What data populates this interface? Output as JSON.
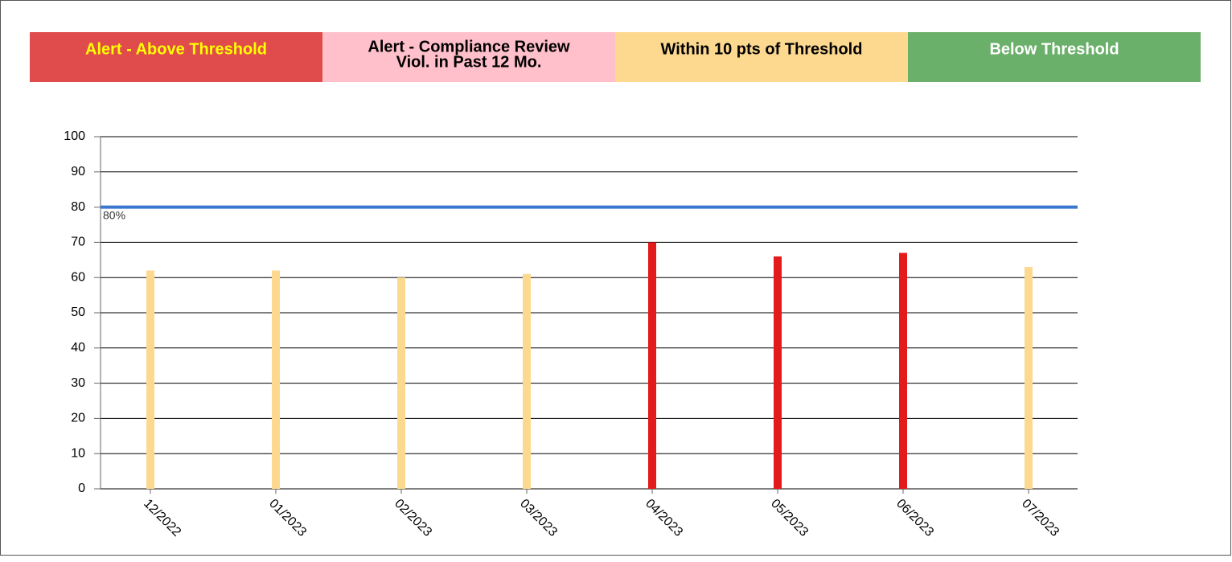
{
  "chart_data": {
    "type": "bar",
    "legend": [
      {
        "label": "Alert - Above Threshold",
        "color": "#e04b4b",
        "text_color": "#ffff00"
      },
      {
        "label": [
          "Alert - Compliance Review",
          "Viol. in Past 12 Mo."
        ],
        "color": "#ffc0cb",
        "text_color": "#000000"
      },
      {
        "label": "Within 10 pts of Threshold",
        "color": "#fdd990",
        "text_color": "#000000"
      },
      {
        "label": "Below Threshold",
        "color": "#6aaf6a",
        "text_color": "#ffffff"
      }
    ],
    "categories": [
      "12/2022",
      "01/2023",
      "02/2023",
      "03/2023",
      "04/2023",
      "05/2023",
      "06/2023",
      "07/2023"
    ],
    "values": [
      62,
      62,
      60,
      61,
      70,
      66,
      67,
      63
    ],
    "colors": [
      "#fdd990",
      "#fdd990",
      "#fdd990",
      "#fdd990",
      "#e31b1b",
      "#e31b1b",
      "#e31b1b",
      "#fdd990"
    ],
    "threshold": {
      "value": 80,
      "label": "80%",
      "color": "#3a78d0"
    },
    "ylim": [
      0,
      100
    ],
    "yticks": [
      0,
      10,
      20,
      30,
      40,
      50,
      60,
      70,
      80,
      90,
      100
    ],
    "grid": true
  }
}
